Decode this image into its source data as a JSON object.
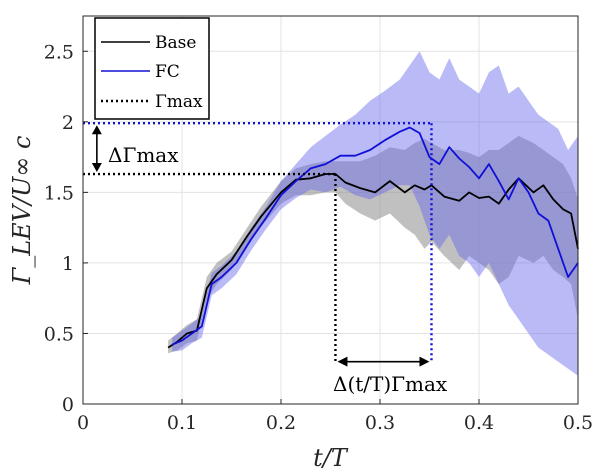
{
  "chart_data": {
    "type": "line",
    "xlabel": "t/T",
    "ylabel": "Γ_LEV/U∞ c",
    "xlim": [
      0,
      0.5
    ],
    "ylim": [
      0,
      2.75
    ],
    "x_ticks": [
      0,
      0.1,
      0.2,
      0.3,
      0.4,
      0.5
    ],
    "x_tick_labels": [
      "0",
      "0.1",
      "0.2",
      "0.3",
      "0.4",
      "0.5"
    ],
    "y_ticks": [
      0,
      0.5,
      1,
      1.5,
      2,
      2.5
    ],
    "y_tick_labels": [
      "0",
      "0.5",
      "1",
      "1.5",
      "2",
      "2.5"
    ],
    "grid": true,
    "legend_position": "top-left",
    "series": [
      {
        "name": "Base",
        "color": "#000000",
        "band_color": "#8c8c8c",
        "x": [
          0.086,
          0.095,
          0.105,
          0.115,
          0.125,
          0.135,
          0.15,
          0.165,
          0.18,
          0.2,
          0.215,
          0.23,
          0.245,
          0.255,
          0.265,
          0.28,
          0.295,
          0.31,
          0.325,
          0.335,
          0.345,
          0.352,
          0.365,
          0.38,
          0.39,
          0.4,
          0.41,
          0.42,
          0.43,
          0.44,
          0.455,
          0.465,
          0.475,
          0.485,
          0.493,
          0.5
        ],
        "y": [
          0.4,
          0.44,
          0.5,
          0.52,
          0.82,
          0.92,
          1.02,
          1.18,
          1.33,
          1.5,
          1.59,
          1.6,
          1.63,
          1.63,
          1.57,
          1.53,
          1.5,
          1.58,
          1.5,
          1.55,
          1.52,
          1.55,
          1.47,
          1.44,
          1.5,
          1.46,
          1.47,
          1.42,
          1.52,
          1.6,
          1.5,
          1.55,
          1.45,
          1.38,
          1.35,
          1.1
        ],
        "upper": [
          0.45,
          0.5,
          0.56,
          0.6,
          0.9,
          1.0,
          1.08,
          1.24,
          1.4,
          1.58,
          1.67,
          1.7,
          1.72,
          1.72,
          1.72,
          1.72,
          1.76,
          1.82,
          1.8,
          1.85,
          1.88,
          1.85,
          1.8,
          1.8,
          1.78,
          1.75,
          1.8,
          1.8,
          1.85,
          1.9,
          1.85,
          1.8,
          1.75,
          1.7,
          1.6,
          1.45
        ],
        "lower": [
          0.36,
          0.38,
          0.43,
          0.45,
          0.74,
          0.85,
          0.95,
          1.1,
          1.26,
          1.42,
          1.48,
          1.48,
          1.5,
          1.5,
          1.42,
          1.35,
          1.3,
          1.35,
          1.25,
          1.2,
          1.1,
          1.15,
          1.05,
          0.95,
          1.05,
          1.0,
          0.95,
          0.85,
          0.9,
          1.05,
          1.0,
          1.05,
          0.95,
          0.9,
          0.85,
          0.6
        ]
      },
      {
        "name": "FC",
        "color": "#1010d6",
        "band_color": "#6666ee",
        "x": [
          0.09,
          0.1,
          0.11,
          0.12,
          0.13,
          0.14,
          0.155,
          0.17,
          0.185,
          0.2,
          0.215,
          0.23,
          0.245,
          0.26,
          0.275,
          0.29,
          0.305,
          0.32,
          0.33,
          0.34,
          0.35,
          0.36,
          0.37,
          0.38,
          0.39,
          0.4,
          0.41,
          0.42,
          0.43,
          0.44,
          0.45,
          0.46,
          0.47,
          0.48,
          0.49,
          0.5
        ],
        "y": [
          0.42,
          0.45,
          0.5,
          0.55,
          0.85,
          0.9,
          1.0,
          1.17,
          1.32,
          1.48,
          1.58,
          1.67,
          1.7,
          1.76,
          1.76,
          1.8,
          1.87,
          1.93,
          1.96,
          1.92,
          1.75,
          1.7,
          1.82,
          1.74,
          1.68,
          1.6,
          1.7,
          1.58,
          1.45,
          1.6,
          1.5,
          1.35,
          1.3,
          1.1,
          0.9,
          1.0
        ],
        "upper": [
          0.47,
          0.52,
          0.57,
          0.63,
          0.93,
          0.98,
          1.08,
          1.25,
          1.4,
          1.58,
          1.7,
          1.82,
          1.9,
          1.98,
          2.05,
          2.15,
          2.22,
          2.3,
          2.4,
          2.5,
          2.35,
          2.3,
          2.45,
          2.3,
          2.25,
          2.2,
          2.35,
          2.4,
          2.2,
          2.25,
          2.15,
          2.05,
          2.0,
          1.95,
          1.8,
          1.9
        ],
        "lower": [
          0.37,
          0.38,
          0.43,
          0.47,
          0.77,
          0.82,
          0.92,
          1.09,
          1.24,
          1.38,
          1.46,
          1.52,
          1.5,
          1.54,
          1.48,
          1.45,
          1.5,
          1.55,
          1.55,
          1.4,
          1.2,
          1.1,
          1.2,
          1.05,
          1.0,
          0.9,
          1.0,
          0.85,
          0.7,
          0.6,
          0.5,
          0.4,
          0.35,
          0.3,
          0.25,
          0.2
        ]
      }
    ],
    "reference_lines": [
      {
        "name": "Γmax",
        "color": "#000000",
        "style": "dotted",
        "level": 1.63,
        "x_at_max": 0.255
      },
      {
        "name": "Γmax (FC)",
        "color": "#1010d6",
        "style": "dotted",
        "level": 1.99,
        "x_at_max": 0.352
      }
    ],
    "legend": [
      {
        "label": "Base",
        "style": "solid",
        "color": "#000000"
      },
      {
        "label": "FC",
        "style": "solid",
        "color": "#1010d6"
      },
      {
        "label": "Γmax",
        "style": "dotted",
        "color": "#000000"
      }
    ],
    "annotations": {
      "delta_gamma": "ΔΓmax",
      "delta_t": "Δ(t/T)Γmax"
    }
  }
}
